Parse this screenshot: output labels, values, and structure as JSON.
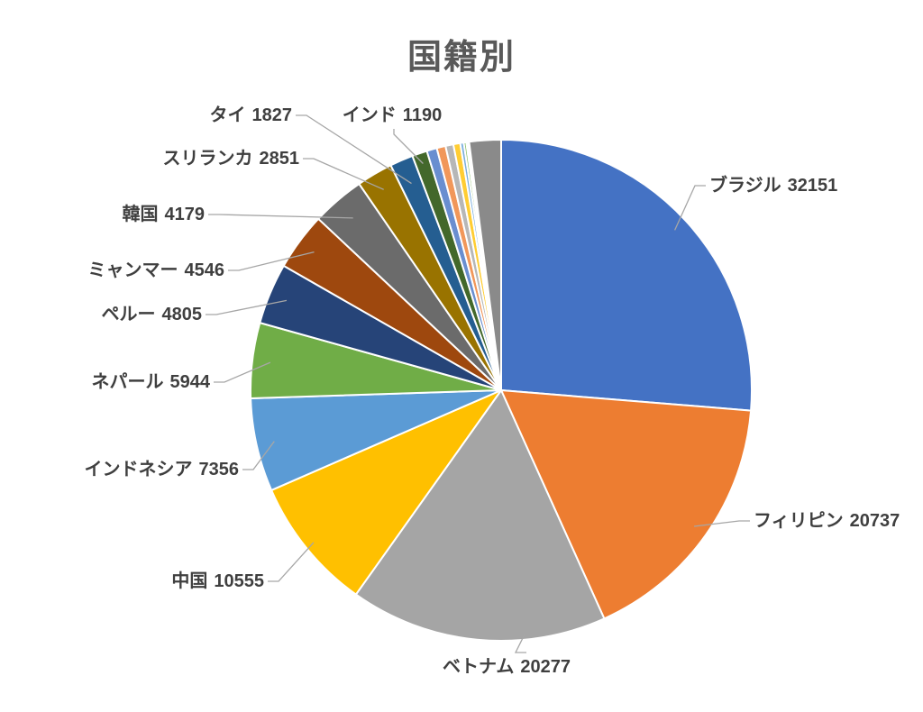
{
  "title": "国籍別",
  "colors": {
    "background": "#ffffff",
    "title_text": "#595959",
    "label_text": "#3f3f3f",
    "leader_line": "#a6a6a6",
    "slice_border": "#ffffff"
  },
  "chart_data": {
    "type": "pie",
    "title": "国籍別",
    "legend": "none",
    "start_angle_deg": 0,
    "direction": "clockwise",
    "data_labels": "category name + value, outside with leader lines",
    "slices": [
      {
        "label": "ブラジル",
        "value": 32151,
        "color": "#4472C4",
        "labeled": true
      },
      {
        "label": "フィリピン",
        "value": 20737,
        "color": "#ED7D31",
        "labeled": true
      },
      {
        "label": "ベトナム",
        "value": 20277,
        "color": "#A5A5A5",
        "labeled": true
      },
      {
        "label": "中国",
        "value": 10555,
        "color": "#FFC000",
        "labeled": true
      },
      {
        "label": "インドネシア",
        "value": 7356,
        "color": "#5B9BD5",
        "labeled": true
      },
      {
        "label": "ネパール",
        "value": 5944,
        "color": "#70AD47",
        "labeled": true
      },
      {
        "label": "ペルー",
        "value": 4805,
        "color": "#264478",
        "labeled": true
      },
      {
        "label": "ミャンマー",
        "value": 4546,
        "color": "#9E480E",
        "labeled": true
      },
      {
        "label": "韓国",
        "value": 4179,
        "color": "#6B6B6B",
        "labeled": true
      },
      {
        "label": "スリランカ",
        "value": 2851,
        "color": "#997300",
        "labeled": true
      },
      {
        "label": "タイ",
        "value": 1827,
        "color": "#255E91",
        "labeled": true
      },
      {
        "label": "インド",
        "value": 1190,
        "color": "#43682B",
        "labeled": true
      },
      {
        "label": "",
        "value": 800,
        "color": "#698ED0",
        "labeled": false,
        "estimated": true
      },
      {
        "label": "",
        "value": 700,
        "color": "#F1975A",
        "labeled": false,
        "estimated": true
      },
      {
        "label": "",
        "value": 620,
        "color": "#B7B7B7",
        "labeled": false,
        "estimated": true
      },
      {
        "label": "",
        "value": 540,
        "color": "#FFCD33",
        "labeled": false,
        "estimated": true
      },
      {
        "label": "",
        "value": 280,
        "color": "#7CAFDD",
        "labeled": false,
        "estimated": true
      },
      {
        "label": "",
        "value": 200,
        "color": "#8CC168",
        "labeled": false,
        "estimated": true
      },
      {
        "label": "",
        "value": 130,
        "color": "#335AA1",
        "labeled": false,
        "estimated": true
      },
      {
        "label": "",
        "value": 90,
        "color": "#CA7C3C",
        "labeled": false,
        "estimated": true
      },
      {
        "label": "",
        "value": 2500,
        "color": "#8A8A8A",
        "labeled": false,
        "estimated": true
      }
    ],
    "estimated_note": "Unlabeled thin slices and the final gray slice carry no visible values; their values are estimated from arc widths in the image."
  }
}
